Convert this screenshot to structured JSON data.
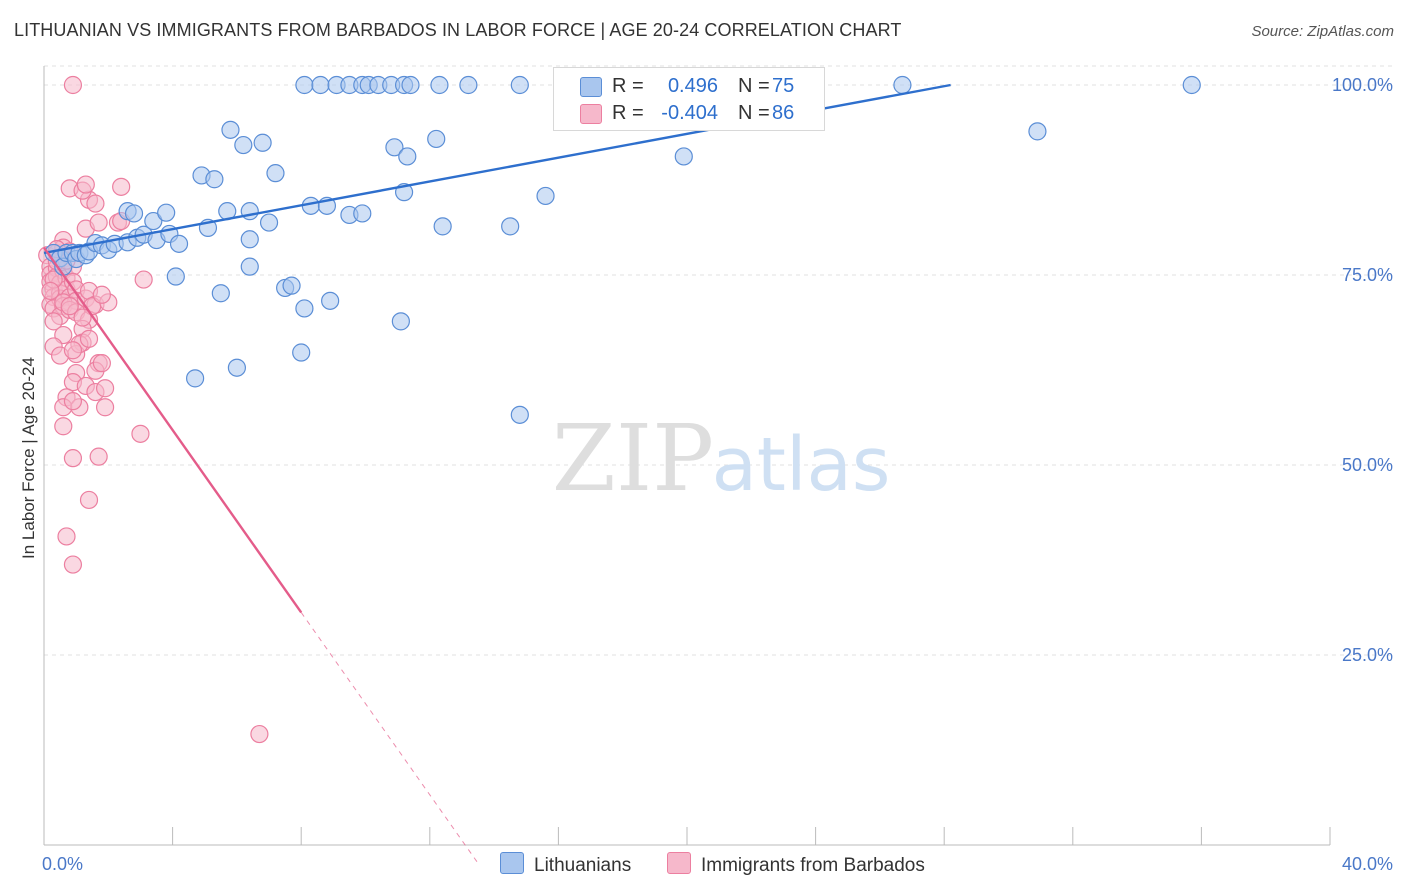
{
  "title": "LITHUANIAN VS IMMIGRANTS FROM BARBADOS IN LABOR FORCE | AGE 20-24 CORRELATION CHART",
  "source": "Source: ZipAtlas.com",
  "watermark": {
    "zip": "ZIP",
    "atlas": "atlas"
  },
  "colors": {
    "blue_fill": "#a9c6ee",
    "blue_stroke": "#5b8ed6",
    "blue_line": "#2e6fcd",
    "pink_fill": "#f6b8cb",
    "pink_stroke": "#ec7fa0",
    "pink_line": "#e45c8a",
    "tick_text": "#4a78c8",
    "grid": "#e2e2e2"
  },
  "legend": {
    "rows": [
      {
        "r_label": "R =",
        "r_value": "0.496",
        "n_label": "N =",
        "n_value": "75"
      },
      {
        "r_label": "R =",
        "r_value": "-0.404",
        "n_label": "N =",
        "n_value": "86"
      }
    ]
  },
  "bottom_legend": {
    "series1": "Lithuanians",
    "series2": "Immigrants from Barbados"
  },
  "chart_data": {
    "type": "scatter",
    "title": "LITHUANIAN VS IMMIGRANTS FROM BARBADOS IN LABOR FORCE | AGE 20-24 CORRELATION CHART",
    "xlabel": "",
    "ylabel": "In Labor Force | Age 20-24",
    "xlim": [
      0,
      40
    ],
    "ylim": [
      0,
      102.5
    ],
    "x_tick_labels": [
      {
        "value": 0,
        "label": "0.0%"
      },
      {
        "value": 40,
        "label": "40.0%"
      }
    ],
    "x_minor_ticks": [
      4,
      8,
      12,
      16,
      20,
      24,
      28,
      32,
      36
    ],
    "y_ticks": [
      {
        "value": 25,
        "label": "25.0%"
      },
      {
        "value": 50,
        "label": "50.0%"
      },
      {
        "value": 75,
        "label": "75.0%"
      },
      {
        "value": 100,
        "label": "100.0%"
      }
    ],
    "series": [
      {
        "name": "Lithuanians",
        "r": 0.496,
        "n": 75,
        "trend": {
          "x0": 0,
          "y0": 77.9,
          "x1": 28.2,
          "y1": 100
        },
        "points": [
          [
            0.3,
            77.9
          ],
          [
            0.5,
            77.2
          ],
          [
            0.6,
            76.1
          ],
          [
            0.7,
            77.9
          ],
          [
            0.9,
            77.9
          ],
          [
            1.0,
            77.1
          ],
          [
            1.1,
            77.9
          ],
          [
            1.3,
            77.6
          ],
          [
            1.4,
            78.1
          ],
          [
            1.6,
            79.2
          ],
          [
            1.8,
            78.9
          ],
          [
            2.0,
            78.3
          ],
          [
            2.2,
            79.1
          ],
          [
            2.6,
            79.3
          ],
          [
            2.9,
            79.9
          ],
          [
            3.1,
            80.3
          ],
          [
            3.5,
            79.6
          ],
          [
            3.9,
            80.4
          ],
          [
            4.2,
            79.1
          ],
          [
            2.6,
            83.4
          ],
          [
            2.8,
            83.1
          ],
          [
            3.4,
            82.1
          ],
          [
            3.8,
            83.2
          ],
          [
            5.1,
            81.2
          ],
          [
            5.7,
            83.4
          ],
          [
            6.4,
            83.4
          ],
          [
            7.0,
            81.9
          ],
          [
            8.3,
            84.1
          ],
          [
            8.8,
            84.1
          ],
          [
            9.5,
            82.9
          ],
          [
            9.9,
            83.1
          ],
          [
            12.4,
            81.4
          ],
          [
            14.5,
            81.4
          ],
          [
            4.1,
            74.8
          ],
          [
            5.5,
            72.6
          ],
          [
            6.4,
            79.7
          ],
          [
            6.4,
            76.1
          ],
          [
            7.5,
            73.3
          ],
          [
            7.7,
            73.6
          ],
          [
            8.1,
            70.6
          ],
          [
            8.9,
            71.6
          ],
          [
            11.1,
            68.9
          ],
          [
            8.0,
            64.8
          ],
          [
            4.7,
            61.4
          ],
          [
            6.0,
            62.8
          ],
          [
            14.8,
            56.6
          ],
          [
            4.9,
            88.1
          ],
          [
            5.3,
            87.6
          ],
          [
            5.8,
            94.1
          ],
          [
            6.2,
            92.1
          ],
          [
            6.8,
            92.4
          ],
          [
            7.2,
            88.4
          ],
          [
            10.9,
            91.8
          ],
          [
            11.3,
            90.6
          ],
          [
            12.2,
            92.9
          ],
          [
            11.2,
            85.9
          ],
          [
            15.6,
            85.4
          ],
          [
            19.9,
            90.6
          ],
          [
            30.9,
            93.9
          ],
          [
            8.1,
            100
          ],
          [
            8.6,
            100
          ],
          [
            9.1,
            100
          ],
          [
            9.5,
            100
          ],
          [
            9.9,
            100
          ],
          [
            10.1,
            100
          ],
          [
            10.4,
            100
          ],
          [
            10.8,
            100
          ],
          [
            11.2,
            100
          ],
          [
            11.4,
            100
          ],
          [
            12.3,
            100
          ],
          [
            13.2,
            100
          ],
          [
            14.8,
            100
          ],
          [
            26.7,
            100
          ],
          [
            35.7,
            100
          ]
        ]
      },
      {
        "name": "Immigrants from Barbados",
        "r": -0.404,
        "n": 86,
        "trend": {
          "x0": 0,
          "y0": 78.6,
          "x1": 8.0,
          "y1": 30.6,
          "dash_to_x": 13.5
        },
        "points": [
          [
            0.1,
            77.6
          ],
          [
            0.2,
            76.1
          ],
          [
            0.2,
            75.1
          ],
          [
            0.2,
            74.1
          ],
          [
            0.3,
            73.1
          ],
          [
            0.3,
            72.1
          ],
          [
            0.2,
            71.1
          ],
          [
            0.4,
            77.9
          ],
          [
            0.4,
            75.9
          ],
          [
            0.4,
            74.8
          ],
          [
            0.5,
            73.9
          ],
          [
            0.5,
            72.6
          ],
          [
            0.5,
            71.9
          ],
          [
            0.3,
            70.6
          ],
          [
            0.6,
            77.1
          ],
          [
            0.6,
            75.6
          ],
          [
            0.7,
            74.6
          ],
          [
            0.7,
            73.1
          ],
          [
            0.8,
            72.1
          ],
          [
            0.6,
            70.9
          ],
          [
            0.5,
            69.6
          ],
          [
            0.9,
            76.1
          ],
          [
            0.9,
            74.1
          ],
          [
            1.0,
            73.1
          ],
          [
            1.0,
            71.6
          ],
          [
            0.4,
            76.8
          ],
          [
            0.3,
            74.4
          ],
          [
            0.6,
            71.4
          ],
          [
            0.6,
            79.6
          ],
          [
            0.6,
            78.6
          ],
          [
            0.8,
            78.1
          ],
          [
            0.7,
            76.9
          ],
          [
            0.4,
            78.4
          ],
          [
            0.2,
            72.9
          ],
          [
            0.8,
            70.4
          ],
          [
            0.3,
            68.9
          ],
          [
            1.3,
            71.9
          ],
          [
            1.4,
            72.9
          ],
          [
            1.6,
            71.1
          ],
          [
            1.0,
            70.1
          ],
          [
            1.4,
            69.1
          ],
          [
            1.2,
            67.9
          ],
          [
            0.6,
            67.1
          ],
          [
            1.2,
            66.1
          ],
          [
            0.3,
            65.6
          ],
          [
            1.0,
            64.6
          ],
          [
            1.7,
            63.4
          ],
          [
            1.0,
            62.1
          ],
          [
            1.6,
            62.4
          ],
          [
            0.9,
            60.9
          ],
          [
            1.3,
            60.4
          ],
          [
            1.6,
            59.6
          ],
          [
            1.9,
            60.1
          ],
          [
            0.7,
            58.9
          ],
          [
            0.6,
            57.6
          ],
          [
            1.1,
            57.6
          ],
          [
            0.9,
            58.4
          ],
          [
            1.9,
            57.6
          ],
          [
            0.6,
            55.1
          ],
          [
            1.7,
            51.1
          ],
          [
            0.9,
            50.9
          ],
          [
            1.4,
            45.4
          ],
          [
            0.7,
            40.6
          ],
          [
            0.9,
            36.9
          ],
          [
            1.3,
            81.1
          ],
          [
            1.4,
            84.9
          ],
          [
            1.6,
            84.4
          ],
          [
            1.7,
            81.9
          ],
          [
            2.3,
            81.9
          ],
          [
            2.4,
            82.1
          ],
          [
            0.8,
            86.4
          ],
          [
            1.2,
            86.1
          ],
          [
            1.3,
            86.9
          ],
          [
            2.4,
            86.6
          ],
          [
            3.0,
            54.1
          ],
          [
            3.1,
            74.4
          ],
          [
            1.5,
            70.9
          ],
          [
            1.8,
            63.4
          ],
          [
            1.1,
            65.9
          ],
          [
            1.4,
            66.6
          ],
          [
            0.5,
            64.4
          ],
          [
            2.0,
            71.4
          ],
          [
            0.8,
            70.9
          ],
          [
            1.2,
            69.4
          ],
          [
            0.9,
            65.1
          ],
          [
            1.8,
            72.4
          ],
          [
            0.9,
            100
          ],
          [
            6.7,
            14.6
          ]
        ]
      }
    ]
  }
}
